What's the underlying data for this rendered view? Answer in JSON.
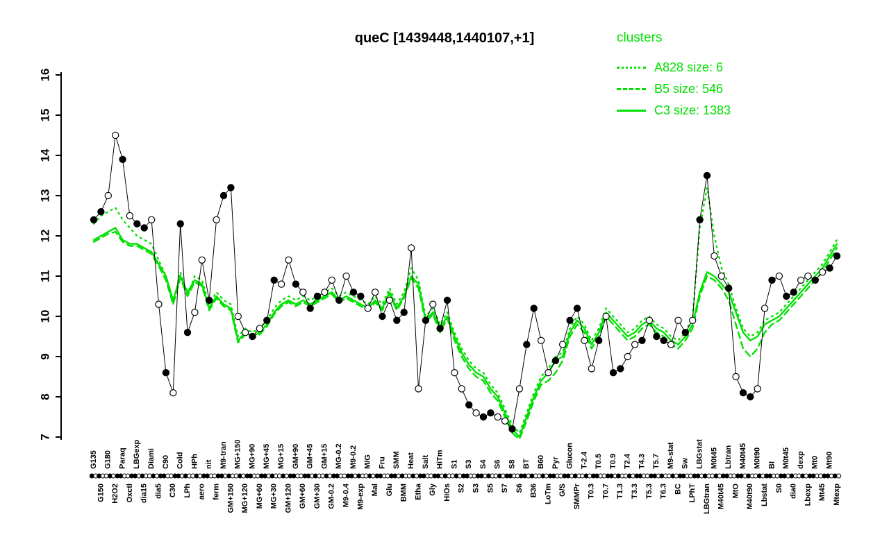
{
  "title": "queC [1439448,1440107,+1]",
  "legend": {
    "title": "clusters",
    "entries": [
      {
        "name": "A828",
        "label": "A828 size: 6",
        "style": "dotted"
      },
      {
        "name": "B5",
        "label": "B5 size: 546",
        "style": "dashed"
      },
      {
        "name": "C3",
        "label": "C3 size: 1383",
        "style": "solid"
      }
    ]
  },
  "colors": {
    "cluster_green": "#00E000",
    "points_black": "#000000"
  },
  "chart_data": {
    "type": "line",
    "title": "queC [1439448,1440107,+1]",
    "xlabel": "",
    "ylabel": "",
    "ylim": [
      7,
      16
    ],
    "yticks": [
      7,
      8,
      9,
      10,
      11,
      12,
      13,
      14,
      15,
      16
    ],
    "grid": false,
    "legend_position": "top-right",
    "categories": [
      "G135",
      "G150",
      "G180",
      "H2O2",
      "Paraq",
      "Oxctl",
      "LBGexp",
      "dia15",
      "Diami",
      "dia5",
      "C90",
      "C30",
      "Cold",
      "LPh",
      "HPh",
      "aero",
      "nit",
      "ferm",
      "M9-tran",
      "GM+150",
      "MG+150",
      "MG+120",
      "MG+90",
      "MG+60",
      "MG+45",
      "MG+30",
      "MG+15",
      "GM+120",
      "GM+90",
      "GM+60",
      "GM+45",
      "GM+30",
      "GM+15",
      "GM-0.2",
      "MG-0.2",
      "M9-0.4",
      "M9-0.2",
      "M9-exp",
      "M/G",
      "Mal",
      "Fru",
      "Glu",
      "SMM",
      "BMM",
      "Heat",
      "Etha",
      "Salt",
      "Gly",
      "HiTm",
      "HiOs",
      "S1",
      "S2",
      "S3",
      "S3",
      "S4",
      "S5",
      "S6",
      "S7",
      "S8",
      "S6",
      "BT",
      "B36",
      "B60",
      "LoTm",
      "Pyr",
      "G/S",
      "Glucon",
      "SMMPr",
      "T-2.4",
      "T0.3",
      "T0.5",
      "T0.7",
      "T0.9",
      "T1.3",
      "T2.4",
      "T3.3",
      "T4.3",
      "T5.3",
      "T5.7",
      "T6.3",
      "M9-stat",
      "BC",
      "Sw",
      "LPhT",
      "LBGstat",
      "LBGtran",
      "M0t45",
      "M40t45",
      "Lbtran",
      "MtO",
      "M40t45",
      "M40t90",
      "M0t90",
      "Lbstat",
      "BI",
      "S0",
      "M0t45",
      "dia0",
      "dexp",
      "Lbexp",
      "Mt0",
      "Mt45",
      "Mt90",
      "Mtexp"
    ],
    "point_series": {
      "name": "queC samples",
      "values": [
        12.4,
        12.6,
        13.0,
        14.5,
        13.9,
        12.5,
        12.3,
        12.2,
        12.4,
        10.3,
        8.6,
        8.1,
        12.3,
        9.6,
        10.1,
        11.4,
        10.4,
        12.4,
        13.0,
        13.2,
        10.0,
        9.6,
        9.5,
        9.7,
        9.9,
        10.9,
        10.8,
        11.4,
        10.8,
        10.6,
        10.2,
        10.5,
        10.6,
        10.9,
        10.4,
        11.0,
        10.6,
        10.5,
        10.2,
        10.6,
        10.0,
        10.4,
        9.9,
        10.1,
        11.7,
        8.2,
        9.9,
        10.3,
        9.7,
        10.4,
        8.6,
        8.2,
        7.8,
        7.6,
        7.5,
        7.6,
        7.5,
        7.4,
        7.2,
        8.2,
        9.3,
        10.2,
        9.4,
        8.6,
        8.9,
        9.3,
        9.9,
        10.2,
        9.4,
        8.7,
        9.4,
        10.0,
        8.6,
        8.7,
        9.0,
        9.3,
        9.4,
        9.9,
        9.5,
        9.4,
        9.3,
        9.9,
        9.6,
        9.9,
        12.4,
        13.5,
        11.5,
        11.0,
        10.7,
        8.5,
        8.1,
        8.0,
        8.2,
        10.2,
        10.9,
        11.0,
        10.5,
        10.6,
        10.9,
        11.0,
        10.9,
        11.1,
        11.2,
        11.5
      ],
      "open_pattern": "ffoofoffoofoffoofoffoofoffoofoffoofoffoofoffoofoffoofoffoofoffoofoffoofoffoofoffoofoffoofoffoofoffoofoff"
    },
    "series": [
      {
        "name": "A828",
        "size": 6,
        "style": "dotted",
        "values": [
          12.3,
          12.5,
          12.6,
          12.7,
          12.4,
          12.2,
          12.0,
          11.9,
          11.8,
          11.4,
          11.0,
          10.3,
          11.1,
          10.5,
          11.0,
          10.9,
          10.3,
          10.6,
          10.4,
          10.3,
          9.5,
          9.7,
          9.6,
          9.7,
          9.9,
          10.2,
          10.4,
          10.5,
          10.4,
          10.5,
          10.4,
          10.5,
          10.6,
          10.7,
          10.5,
          10.6,
          10.5,
          10.4,
          10.3,
          10.5,
          10.3,
          10.7,
          10.3,
          10.6,
          11.2,
          10.9,
          10.0,
          10.2,
          9.8,
          10.1,
          9.6,
          9.2,
          8.9,
          8.7,
          8.6,
          8.3,
          8.1,
          7.7,
          7.3,
          7.1,
          7.6,
          8.1,
          8.5,
          8.7,
          9.0,
          9.1,
          9.7,
          10.0,
          9.8,
          9.4,
          9.7,
          10.2,
          10.0,
          9.8,
          9.6,
          9.7,
          9.9,
          10.0,
          9.8,
          9.7,
          9.5,
          9.4,
          9.6,
          10.0,
          12.2,
          13.2,
          12.0,
          11.2,
          10.8,
          10.2,
          9.7,
          9.5,
          9.6,
          9.9,
          10.0,
          10.1,
          10.3,
          10.5,
          10.7,
          10.9,
          11.1,
          11.3,
          11.6,
          11.9
        ]
      },
      {
        "name": "B5",
        "size": 546,
        "style": "dashed",
        "values": [
          11.85,
          11.95,
          12.05,
          12.1,
          11.85,
          11.75,
          11.75,
          11.65,
          11.55,
          11.25,
          10.9,
          10.3,
          10.95,
          10.5,
          10.85,
          10.75,
          10.15,
          10.45,
          10.25,
          10.15,
          9.35,
          9.55,
          9.45,
          9.55,
          9.75,
          10.05,
          10.25,
          10.35,
          10.25,
          10.35,
          10.25,
          10.35,
          10.45,
          10.55,
          10.35,
          10.45,
          10.35,
          10.25,
          10.15,
          10.35,
          10.15,
          10.55,
          10.15,
          10.45,
          10.95,
          10.7,
          9.85,
          10.05,
          9.6,
          9.95,
          9.4,
          9.0,
          8.7,
          8.5,
          8.4,
          8.1,
          7.9,
          7.5,
          7.1,
          6.95,
          7.4,
          7.9,
          8.3,
          8.4,
          8.6,
          8.9,
          9.5,
          9.8,
          9.6,
          9.2,
          9.5,
          10.0,
          9.8,
          9.6,
          9.4,
          9.5,
          9.7,
          9.8,
          9.6,
          9.5,
          9.3,
          9.2,
          9.4,
          9.7,
          10.5,
          11.0,
          10.9,
          10.7,
          10.4,
          9.8,
          9.2,
          9.0,
          9.2,
          9.6,
          9.8,
          9.9,
          10.1,
          10.3,
          10.5,
          10.7,
          10.9,
          11.1,
          11.4,
          11.7
        ]
      },
      {
        "name": "C3",
        "size": 1383,
        "style": "solid",
        "values": [
          11.9,
          12.0,
          12.1,
          12.2,
          11.9,
          11.8,
          11.8,
          11.7,
          11.6,
          11.3,
          11.0,
          10.4,
          11.0,
          10.6,
          10.9,
          10.8,
          10.2,
          10.5,
          10.3,
          10.2,
          9.4,
          9.6,
          9.5,
          9.6,
          9.8,
          10.1,
          10.3,
          10.4,
          10.3,
          10.4,
          10.3,
          10.4,
          10.5,
          10.6,
          10.4,
          10.5,
          10.4,
          10.3,
          10.2,
          10.4,
          10.2,
          10.6,
          10.2,
          10.5,
          11.0,
          10.8,
          9.9,
          10.1,
          9.7,
          10.0,
          9.5,
          9.1,
          8.8,
          8.6,
          8.5,
          8.2,
          8.0,
          7.6,
          7.2,
          7.0,
          7.5,
          8.0,
          8.4,
          8.6,
          8.9,
          9.0,
          9.6,
          9.9,
          9.7,
          9.3,
          9.6,
          10.1,
          9.9,
          9.7,
          9.5,
          9.6,
          9.8,
          9.9,
          9.7,
          9.6,
          9.4,
          9.3,
          9.5,
          9.8,
          10.6,
          11.1,
          11.0,
          10.8,
          10.6,
          10.1,
          9.6,
          9.4,
          9.5,
          9.8,
          9.9,
          10.0,
          10.2,
          10.4,
          10.6,
          10.8,
          11.0,
          11.2,
          11.5,
          11.8
        ]
      }
    ]
  }
}
